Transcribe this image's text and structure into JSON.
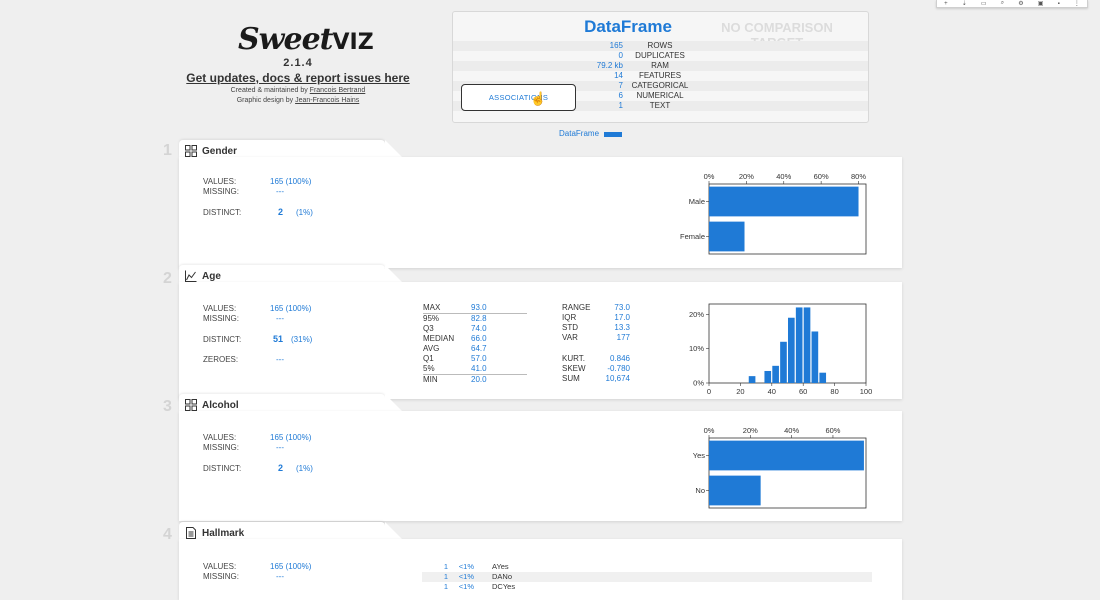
{
  "header": {
    "logo_main": "Sweet",
    "logo_viz": "VIZ",
    "version": "2.1.4",
    "updates_link": "Get updates, docs & report issues here",
    "created_by_prefix": "Created & maintained by",
    "created_by_name": "Francois Bertrand",
    "design_prefix": "Graphic design by",
    "design_name": "Jean-Francois Hains"
  },
  "dataframe": {
    "title": "DataFrame",
    "no_comparison": "NO COMPARISON TARGET",
    "rows": [
      {
        "value": "165",
        "label": "ROWS"
      },
      {
        "value": "0",
        "label": "DUPLICATES"
      },
      {
        "value": "79.2 kb",
        "label": "RAM"
      },
      {
        "value": "14",
        "label": "FEATURES"
      },
      {
        "value": "7",
        "label": "CATEGORICAL"
      },
      {
        "value": "6",
        "label": "NUMERICAL"
      },
      {
        "value": "1",
        "label": "TEXT"
      }
    ],
    "associations_button": "ASSOCIATIONS",
    "legend_label": "DataFrame",
    "accent_color": "#1f7ad6"
  },
  "features": [
    {
      "index": "1",
      "name": "Gender",
      "icon": "categorical-icon",
      "values_label": "VALUES:",
      "values": "165 (100%)",
      "missing_label": "MISSING:",
      "missing": "---",
      "distinct_label": "DISTINCT:",
      "distinct": "2",
      "distinct_pct": "(1%)"
    },
    {
      "index": "2",
      "name": "Age",
      "icon": "numerical-icon",
      "values_label": "VALUES:",
      "values": "165 (100%)",
      "missing_label": "MISSING:",
      "missing": "---",
      "distinct_label": "DISTINCT:",
      "distinct": "51",
      "distinct_pct": "(31%)",
      "zeroes_label": "ZEROES:",
      "zeroes": "---",
      "quantiles": [
        {
          "label": "MAX",
          "value": "93.0"
        },
        {
          "label": "95%",
          "value": "82.8"
        },
        {
          "label": "Q3",
          "value": "74.0"
        },
        {
          "label": "MEDIAN",
          "value": "66.0"
        },
        {
          "label": "AVG",
          "value": "64.7"
        },
        {
          "label": "Q1",
          "value": "57.0"
        },
        {
          "label": "5%",
          "value": "41.0"
        },
        {
          "label": "MIN",
          "value": "20.0"
        }
      ],
      "stats_a": [
        {
          "label": "RANGE",
          "value": "73.0"
        },
        {
          "label": "IQR",
          "value": "17.0"
        },
        {
          "label": "STD",
          "value": "13.3"
        },
        {
          "label": "VAR",
          "value": "177"
        }
      ],
      "stats_b": [
        {
          "label": "KURT.",
          "value": "0.846"
        },
        {
          "label": "SKEW",
          "value": "-0.780"
        },
        {
          "label": "SUM",
          "value": "10,674"
        }
      ]
    },
    {
      "index": "3",
      "name": "Alcohol",
      "icon": "categorical-icon",
      "values_label": "VALUES:",
      "values": "165 (100%)",
      "missing_label": "MISSING:",
      "missing": "---",
      "distinct_label": "DISTINCT:",
      "distinct": "2",
      "distinct_pct": "(1%)"
    },
    {
      "index": "4",
      "name": "Hallmark",
      "icon": "text-icon",
      "values_label": "VALUES:",
      "values": "165 (100%)",
      "missing_label": "MISSING:",
      "missing": "---",
      "categories": [
        {
          "count": "1",
          "pct": "<1%",
          "label": "AYes"
        },
        {
          "count": "1",
          "pct": "<1%",
          "label": "DANo"
        },
        {
          "count": "1",
          "pct": "<1%",
          "label": "DCYes"
        }
      ]
    }
  ],
  "chart_data": [
    {
      "type": "bar",
      "orientation": "horizontal",
      "feature": "Gender",
      "categories": [
        "Male",
        "Female"
      ],
      "values": [
        80,
        19
      ],
      "x_ticks": [
        "0%",
        "20%",
        "40%",
        "60%",
        "80%"
      ],
      "xlim": [
        0,
        84
      ],
      "grid": false
    },
    {
      "type": "bar",
      "feature": "Age",
      "x": [
        20,
        25,
        30,
        35,
        40,
        45,
        50,
        55,
        60,
        65,
        70,
        75,
        80,
        85,
        90,
        95
      ],
      "values": [
        0,
        2,
        0,
        3.5,
        5,
        12,
        19,
        22,
        22,
        15,
        3,
        0,
        0,
        0,
        0,
        0
      ],
      "x_ticks": [
        "0",
        "20",
        "40",
        "60",
        "80",
        "100"
      ],
      "y_ticks": [
        "0%",
        "10%",
        "20%"
      ],
      "xlim": [
        0,
        100
      ],
      "ylim": [
        0,
        23
      ],
      "grid": false
    },
    {
      "type": "bar",
      "orientation": "horizontal",
      "feature": "Alcohol",
      "categories": [
        "Yes",
        "No"
      ],
      "values": [
        75,
        25
      ],
      "x_ticks": [
        "0%",
        "20%",
        "40%",
        "60%"
      ],
      "xlim": [
        0,
        76
      ],
      "grid": false
    }
  ]
}
